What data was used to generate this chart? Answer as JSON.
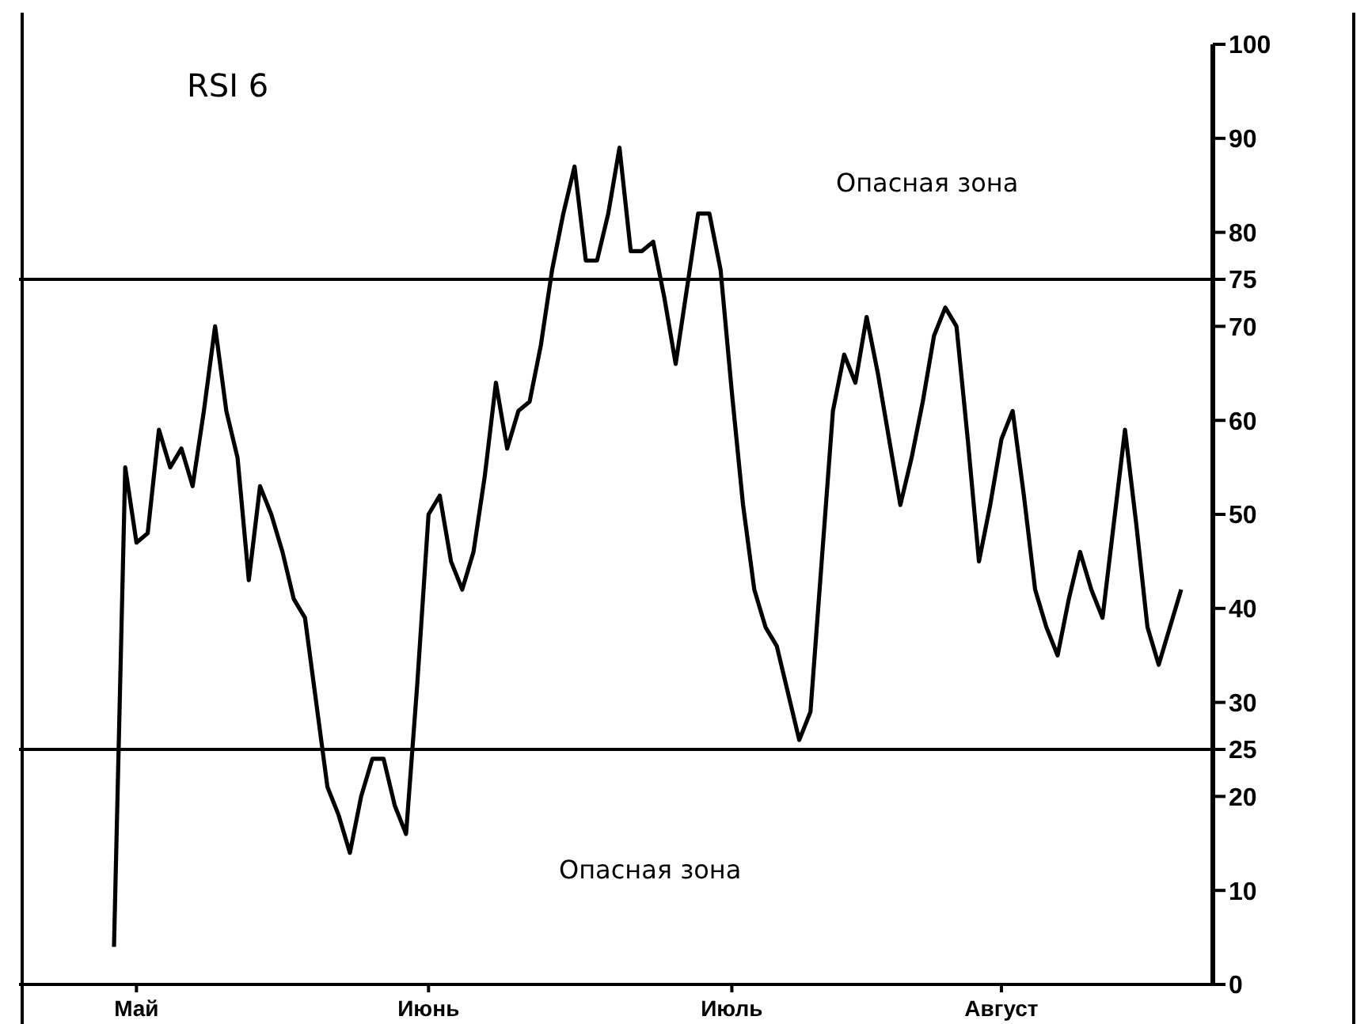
{
  "chart_data": {
    "type": "line",
    "title": "RSI 6",
    "categories": [
      null,
      null,
      "Май",
      null,
      null,
      null,
      null,
      null,
      null,
      null,
      null,
      null,
      null,
      null,
      null,
      null,
      null,
      null,
      null,
      null,
      null,
      null,
      null,
      null,
      null,
      null,
      null,
      null,
      "Июнь",
      null,
      null,
      null,
      null,
      null,
      null,
      null,
      null,
      null,
      null,
      null,
      null,
      null,
      null,
      null,
      null,
      null,
      null,
      null,
      null,
      null,
      null,
      null,
      null,
      null,
      null,
      "Июль",
      null,
      null,
      null,
      null,
      null,
      null,
      null,
      null,
      null,
      null,
      null,
      null,
      null,
      null,
      null,
      null,
      null,
      null,
      null,
      null,
      null,
      null,
      null,
      "Август",
      null,
      null,
      null,
      null,
      null,
      null,
      null,
      null,
      null,
      null,
      null,
      null,
      null,
      null,
      null,
      null
    ],
    "series": [
      {
        "color": "#000000",
        "values": [
          4,
          55,
          47,
          48,
          59,
          55,
          57,
          53,
          61,
          70,
          61,
          56,
          43,
          53,
          50,
          46,
          41,
          39,
          30,
          21,
          18,
          14,
          20,
          24,
          24,
          19,
          16,
          32,
          50,
          52,
          45,
          42,
          46,
          54,
          64,
          57,
          61,
          62,
          68,
          76,
          82,
          87,
          77,
          77,
          82,
          89,
          78,
          78,
          79,
          73,
          66,
          74,
          82,
          82,
          76,
          63,
          51,
          42,
          38,
          36,
          31,
          26,
          29,
          45,
          61,
          67,
          64,
          71,
          65,
          58,
          51,
          56,
          62,
          69,
          72,
          70,
          58,
          45,
          51,
          58,
          61,
          52,
          42,
          38,
          35,
          41,
          46,
          42,
          39,
          49,
          59,
          49,
          38,
          34,
          38,
          42
        ]
      }
    ],
    "ylim": [
      0,
      100
    ],
    "yticks": [
      0,
      10,
      20,
      25,
      30,
      40,
      50,
      60,
      70,
      75,
      80,
      90,
      100
    ],
    "ref_lines": [
      {
        "axis": "y",
        "value": 75,
        "color": "#000000"
      },
      {
        "axis": "y",
        "value": 25,
        "color": "#000000"
      }
    ],
    "annotations": [
      "Опасная зона",
      "Опасная зона"
    ]
  }
}
